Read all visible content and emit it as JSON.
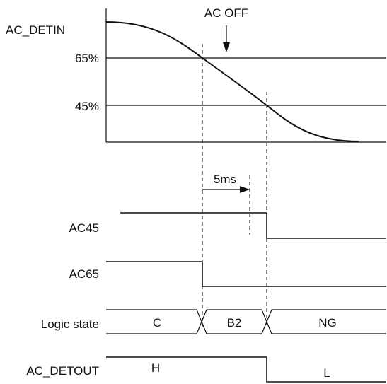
{
  "labels": {
    "ac_detin": "AC_DETIN",
    "pct_65": "65%",
    "pct_45": "45%",
    "ac_off": "AC OFF",
    "delay": "5ms",
    "ac45": "AC45",
    "ac65": "AC65",
    "logic_state": "Logic state",
    "ac_detout": "AC_DETOUT"
  },
  "logic_states": [
    "C",
    "B2",
    "NG"
  ],
  "detout_levels": [
    "H",
    "L"
  ],
  "colors": {
    "line": "#111111",
    "background": "#ffffff"
  }
}
